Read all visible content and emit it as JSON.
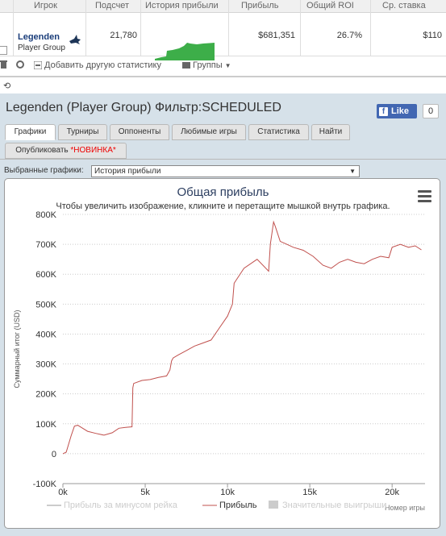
{
  "table": {
    "headers": [
      "Игрок",
      "Подсчет",
      "История прибыли",
      "Прибыль",
      "Общий ROI",
      "Ср. ставка"
    ],
    "row": {
      "player_name": "Legenden",
      "player_group": "Player Group",
      "count": "21,780",
      "profit": "$681,351",
      "roi": "26.7%",
      "avg_stake": "$110"
    }
  },
  "toolbar": {
    "add_stat": "Добавить другую статистику",
    "groups": "Группы"
  },
  "panel": {
    "title": "Legenden (Player Group) Фильтр:SCHEDULED",
    "like_label": "Like",
    "like_count": "0",
    "tabs": [
      "Графики",
      "Турниры",
      "Оппоненты",
      "Любимые игры",
      "Статистика",
      "Найти"
    ],
    "publish_label": "Опубликовать",
    "publish_new": "*НОВИНКА*",
    "selected_label": "Выбранные графики:",
    "selected_value": "История прибыли"
  },
  "chart_data": {
    "type": "line",
    "title": "Общая прибыль",
    "subtitle": "Чтобы увеличить изображение, кликните и перетащите мышкой внутрь графика.",
    "ylabel": "Суммарный итог (USD)",
    "xlabel": "Номер игры",
    "xlim": [
      0,
      22000
    ],
    "ylim": [
      -100000,
      800000
    ],
    "xticks": [
      "0k",
      "5k",
      "10k",
      "15k",
      "20k"
    ],
    "yticks": [
      "-100K",
      "0",
      "100K",
      "200K",
      "300K",
      "400K",
      "500K",
      "600K",
      "700K",
      "800K"
    ],
    "legend": [
      "Прибыль за минусом рейка",
      "Прибыль",
      "Значительные выигрыши"
    ],
    "series": [
      {
        "name": "Прибыль",
        "color": "#c0504d",
        "x": [
          0,
          200,
          500,
          700,
          900,
          1200,
          1500,
          2000,
          2500,
          3000,
          3400,
          3800,
          4200,
          4250,
          4300,
          4800,
          5300,
          5800,
          6300,
          6500,
          6600,
          6700,
          7000,
          7500,
          8000,
          8500,
          9000,
          9500,
          10000,
          10300,
          10400,
          11000,
          11800,
          12500,
          12600,
          12800,
          12900,
          13200,
          13600,
          14000,
          14600,
          15200,
          15800,
          16300,
          16800,
          17300,
          17800,
          18300,
          18800,
          19300,
          19800,
          20000,
          20500,
          21000,
          21400,
          21780
        ],
        "y": [
          0,
          5000,
          60000,
          92000,
          95000,
          85000,
          75000,
          68000,
          62000,
          70000,
          85000,
          88000,
          90000,
          220000,
          235000,
          245000,
          248000,
          255000,
          260000,
          280000,
          310000,
          320000,
          330000,
          345000,
          360000,
          370000,
          380000,
          420000,
          460000,
          500000,
          570000,
          620000,
          650000,
          610000,
          700000,
          775000,
          760000,
          710000,
          700000,
          690000,
          680000,
          660000,
          630000,
          620000,
          640000,
          650000,
          640000,
          635000,
          650000,
          660000,
          655000,
          690000,
          700000,
          690000,
          695000,
          681351
        ]
      }
    ],
    "grid": true,
    "legend_position": "bottom"
  }
}
